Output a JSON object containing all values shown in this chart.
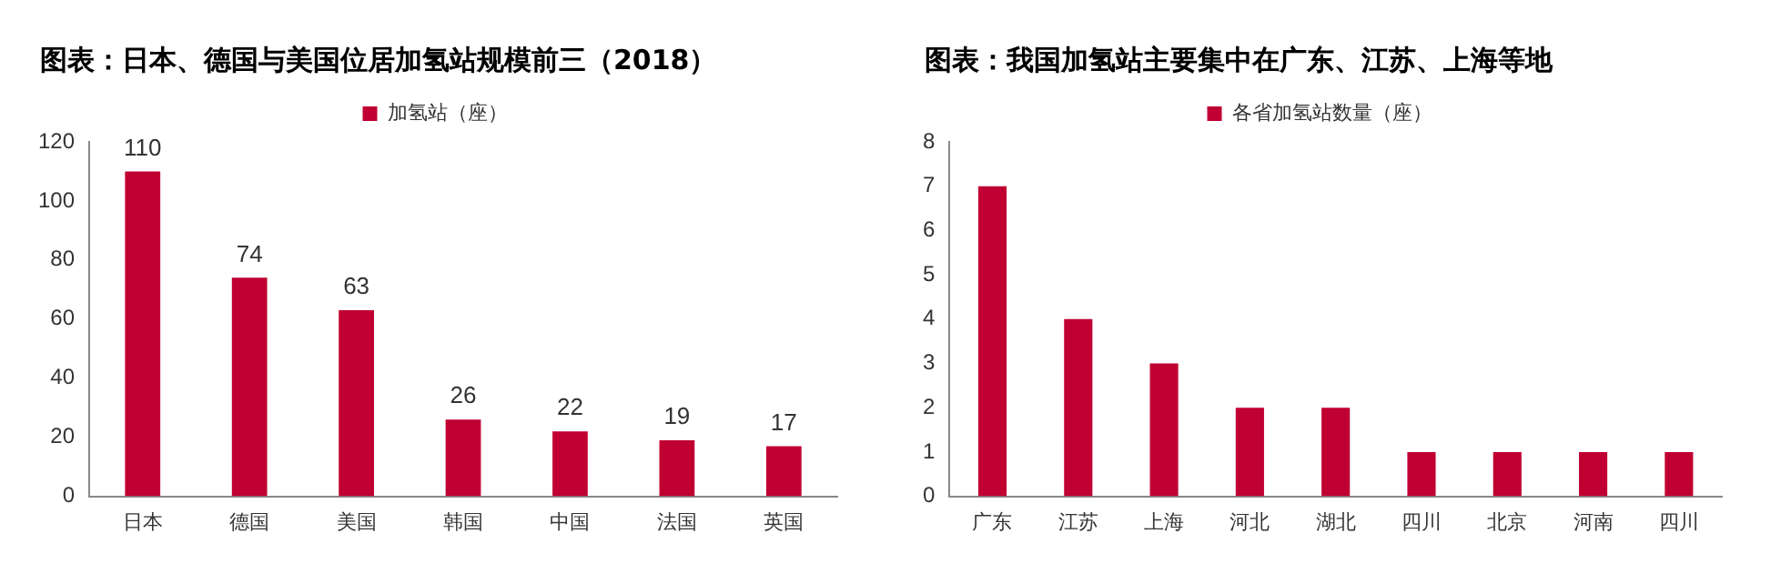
{
  "chart_data": [
    {
      "type": "bar",
      "title": "图表：日本、德国与美国位居加氢站规模前三（2018）",
      "categories": [
        "日本",
        "德国",
        "美国",
        "韩国",
        "中国",
        "法国",
        "英国"
      ],
      "series": [
        {
          "name": "加氢站（座）",
          "color": "#c00032",
          "values": [
            110,
            74,
            63,
            26,
            22,
            19,
            17
          ]
        }
      ],
      "ylim": [
        0,
        120
      ],
      "yticks": [
        0,
        20,
        40,
        60,
        80,
        100,
        120
      ],
      "data_labels": true,
      "legend": "top",
      "grid": false
    },
    {
      "type": "bar",
      "title": "图表：我国加氢站主要集中在广东、江苏、上海等地",
      "categories": [
        "广东",
        "江苏",
        "上海",
        "河北",
        "湖北",
        "四川",
        "北京",
        "河南",
        "四川"
      ],
      "series": [
        {
          "name": "各省加氢站数量（座）",
          "color": "#c00032",
          "values": [
            7,
            4,
            3,
            2,
            2,
            1,
            1,
            1,
            1
          ]
        }
      ],
      "ylim": [
        0,
        8
      ],
      "yticks": [
        0,
        1,
        2,
        3,
        4,
        5,
        6,
        7,
        8
      ],
      "legend": "top",
      "grid": false
    }
  ]
}
